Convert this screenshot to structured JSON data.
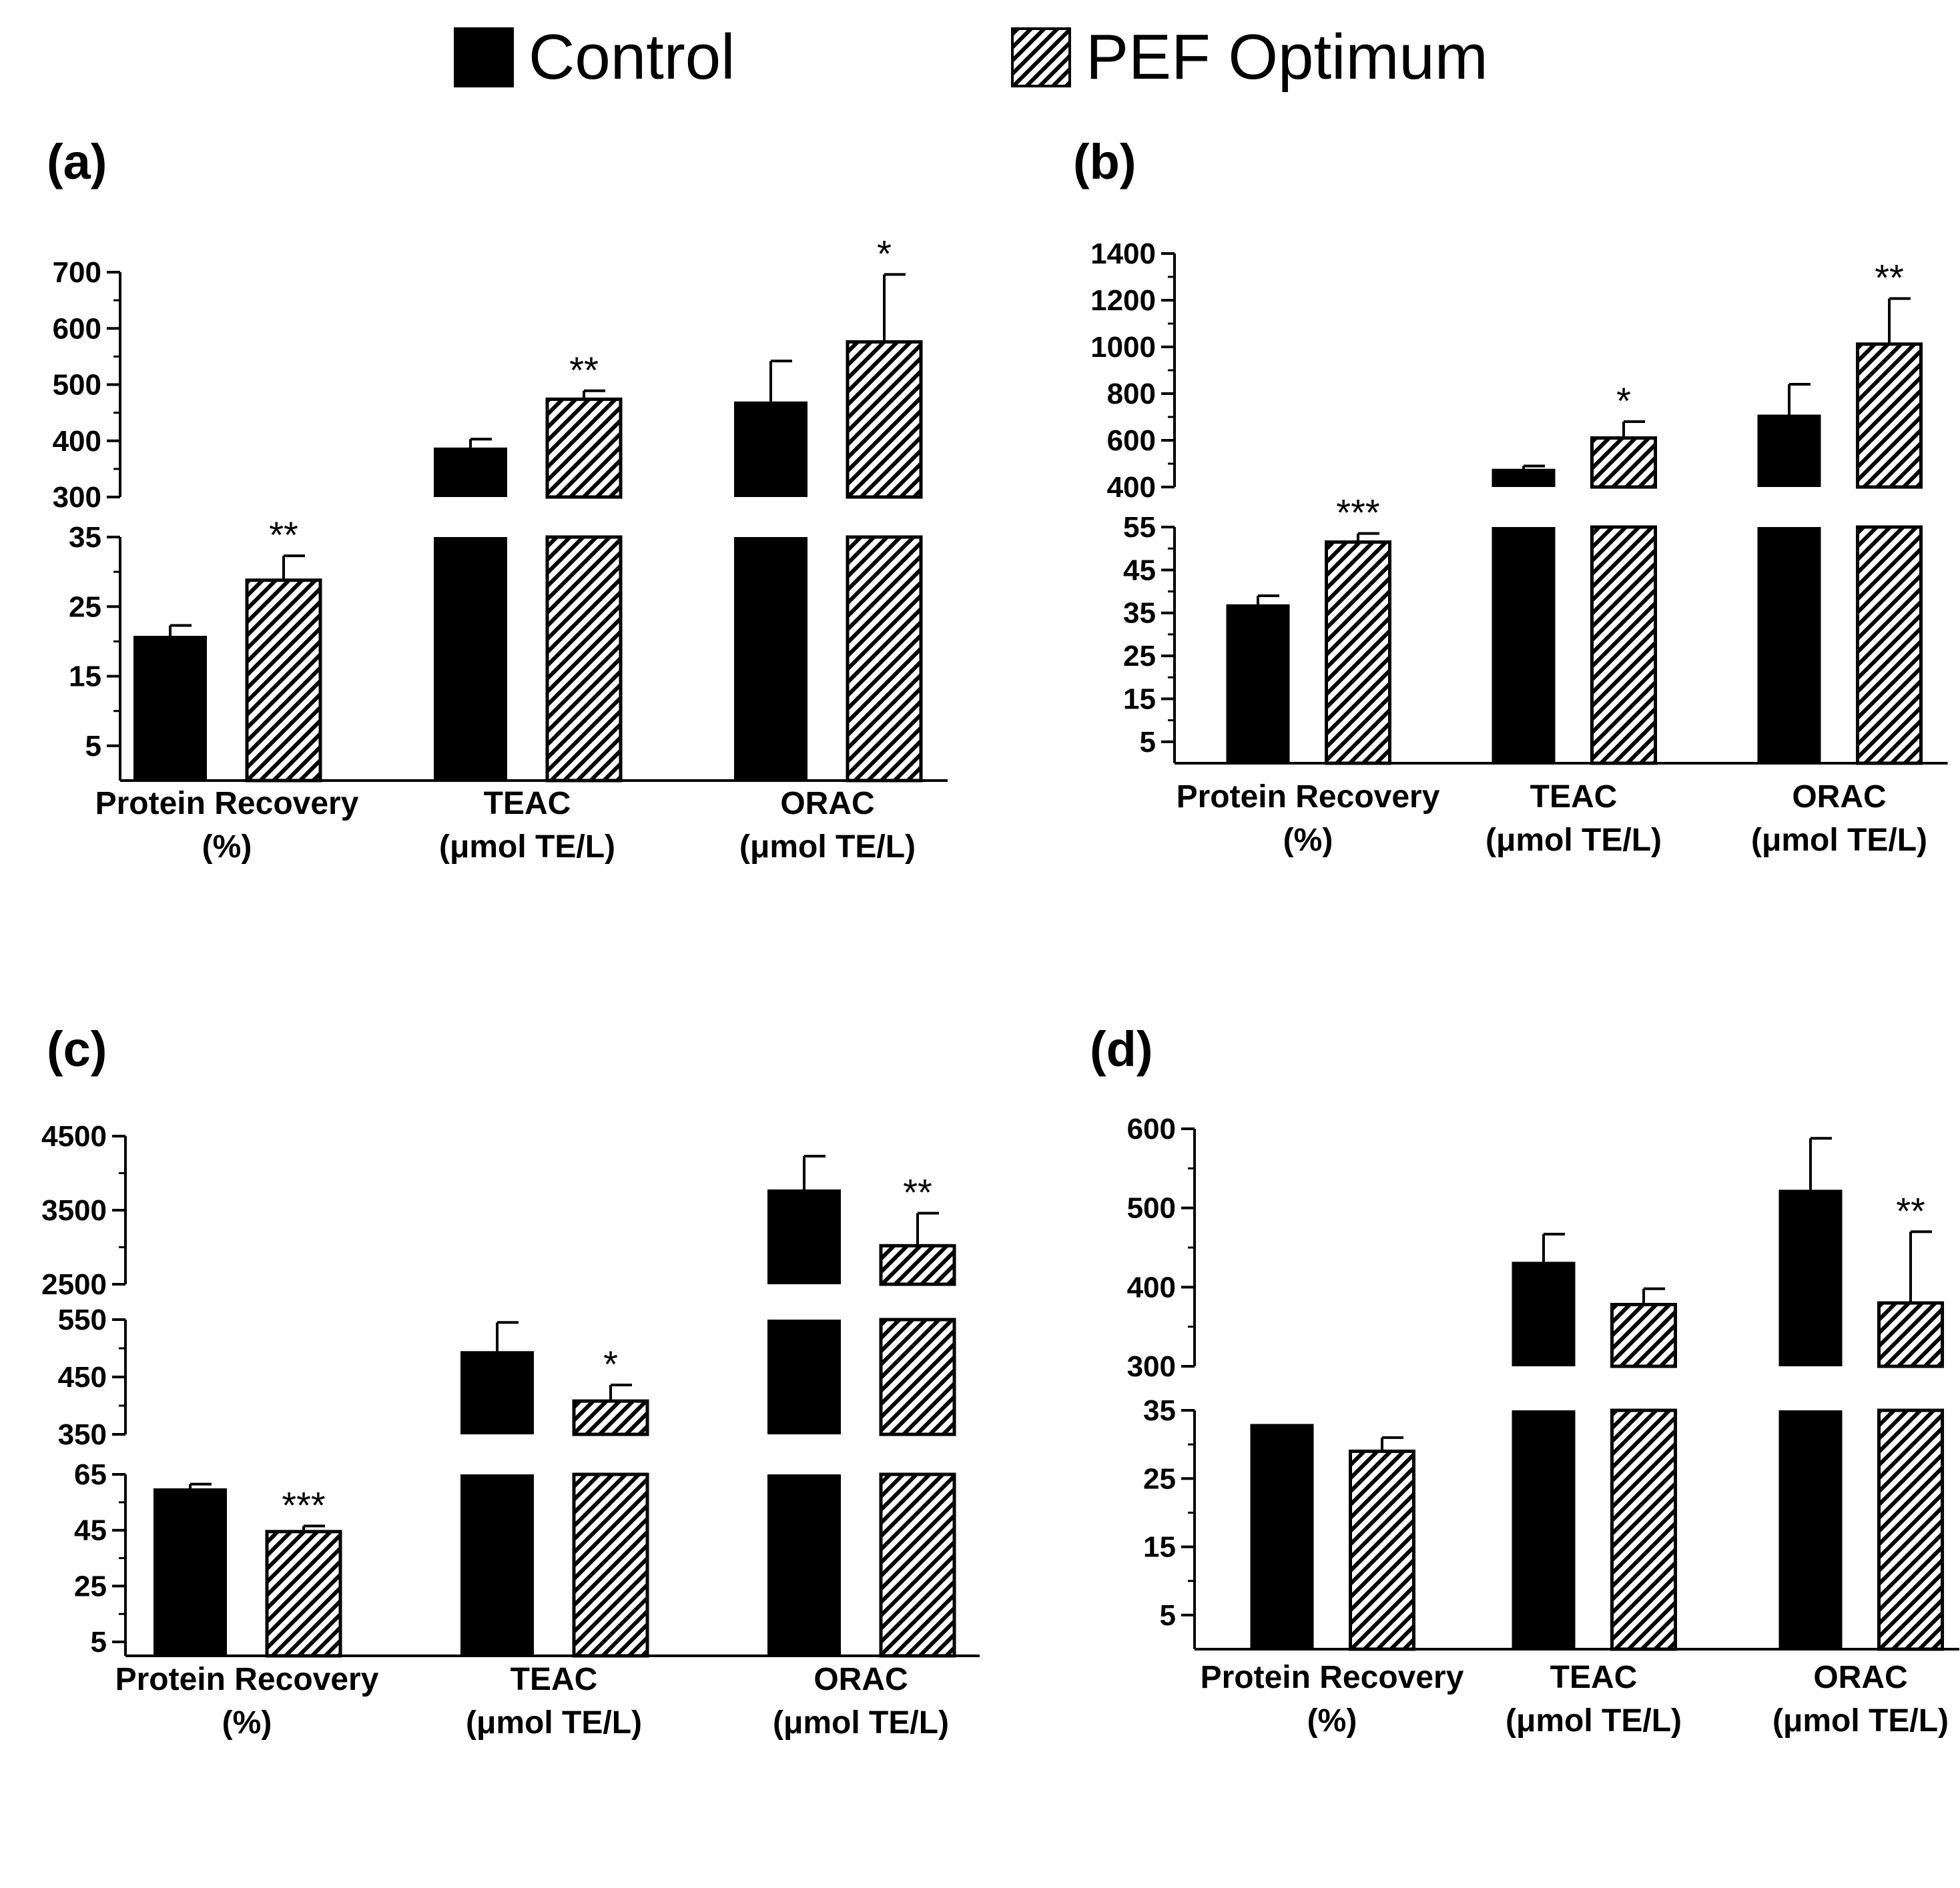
{
  "legend": {
    "control_label": "Control",
    "pef_label": "PEF Optimum",
    "control_color": "#000000",
    "pef_pattern": "diagonal-hatch"
  },
  "chart_data": [
    {
      "type": "bar",
      "panel_label": "(a)",
      "categories": [
        "Protein Recovery (%)",
        "TEAC (μmol TE/L)",
        "ORAC (μmol TE/L)"
      ],
      "category_lines": [
        [
          "Protein Recovery",
          "(%)"
        ],
        [
          "TEAC",
          "(μmol TE/L)"
        ],
        [
          "ORAC",
          "(μmol TE/L)"
        ]
      ],
      "series": [
        {
          "name": "Control",
          "values": [
            20.8,
            388,
            470
          ],
          "errors": [
            1.5,
            15,
            72
          ],
          "sig": [
            "",
            "",
            ""
          ]
        },
        {
          "name": "PEF Optimum",
          "values": [
            28.8,
            474,
            576
          ],
          "errors": [
            3.5,
            15,
            120
          ],
          "sig": [
            "**",
            "**",
            "*"
          ]
        }
      ],
      "axis_segments": [
        {
          "range": [
            300,
            700
          ],
          "ticks": [
            300,
            400,
            500,
            600,
            700
          ]
        },
        {
          "range": [
            0,
            35
          ],
          "ticks": [
            5,
            15,
            25,
            35
          ]
        }
      ],
      "ylabel": "",
      "xlabel": ""
    },
    {
      "type": "bar",
      "panel_label": "(b)",
      "categories": [
        "Protein Recovery (%)",
        "TEAC (μmol TE/L)",
        "ORAC (μmol TE/L)"
      ],
      "category_lines": [
        [
          "Protein Recovery",
          "(%)"
        ],
        [
          "TEAC",
          "(μmol TE/L)"
        ],
        [
          "ORAC",
          "(μmol TE/L)"
        ]
      ],
      "series": [
        {
          "name": "Control",
          "values": [
            37,
            478,
            710
          ],
          "errors": [
            2,
            12,
            130
          ],
          "sig": [
            "",
            "",
            ""
          ]
        },
        {
          "name": "PEF Optimum",
          "values": [
            51.5,
            610,
            1012
          ],
          "errors": [
            2,
            70,
            195
          ],
          "sig": [
            "***",
            "*",
            "**"
          ]
        }
      ],
      "axis_segments": [
        {
          "range": [
            400,
            1400
          ],
          "ticks": [
            400,
            600,
            800,
            1000,
            1200,
            1400
          ]
        },
        {
          "range": [
            0,
            55
          ],
          "ticks": [
            5,
            15,
            25,
            35,
            45,
            55
          ]
        }
      ],
      "ylabel": "",
      "xlabel": ""
    },
    {
      "type": "bar",
      "panel_label": "(c)",
      "categories": [
        "Protein Recovery (%)",
        "TEAC (μmol TE/L)",
        "ORAC (μmol TE/L)"
      ],
      "category_lines": [
        [
          "Protein Recovery",
          "(%)"
        ],
        [
          "TEAC",
          "(μmol TE/L)"
        ],
        [
          "ORAC",
          "(μmol TE/L)"
        ]
      ],
      "series": [
        {
          "name": "Control",
          "values": [
            60,
            495,
            3780
          ],
          "errors": [
            1.5,
            50,
            450
          ],
          "sig": [
            "",
            "",
            ""
          ]
        },
        {
          "name": "PEF Optimum",
          "values": [
            44.5,
            408,
            3020
          ],
          "errors": [
            2,
            28,
            440
          ],
          "sig": [
            "***",
            "*",
            "**"
          ]
        }
      ],
      "axis_segments": [
        {
          "range": [
            2500,
            4500
          ],
          "ticks": [
            2500,
            3500,
            4500
          ]
        },
        {
          "range": [
            350,
            550
          ],
          "ticks": [
            350,
            450,
            550
          ]
        },
        {
          "range": [
            0,
            65
          ],
          "ticks": [
            5,
            25,
            45,
            65
          ]
        }
      ],
      "ylabel": "",
      "xlabel": ""
    },
    {
      "type": "bar",
      "panel_label": "(d)",
      "categories": [
        "Protein Recovery (%)",
        "TEAC (μmol TE/L)",
        "ORAC (μmol TE/L)"
      ],
      "category_lines": [
        [
          "Protein Recovery",
          "(%)"
        ],
        [
          "TEAC",
          "(μmol TE/L)"
        ],
        [
          "ORAC",
          "(μmol TE/L)"
        ]
      ],
      "series": [
        {
          "name": "Control",
          "values": [
            33,
            432,
            523
          ],
          "errors": [
            0,
            35,
            65
          ],
          "sig": [
            "",
            "",
            ""
          ]
        },
        {
          "name": "PEF Optimum",
          "values": [
            29,
            378,
            380
          ],
          "errors": [
            2,
            20,
            90
          ],
          "sig": [
            "",
            "",
            "**"
          ]
        }
      ],
      "axis_segments": [
        {
          "range": [
            300,
            600
          ],
          "ticks": [
            300,
            400,
            500,
            600
          ]
        },
        {
          "range": [
            0,
            35
          ],
          "ticks": [
            5,
            15,
            25,
            35
          ]
        }
      ],
      "ylabel": "",
      "xlabel": ""
    }
  ]
}
